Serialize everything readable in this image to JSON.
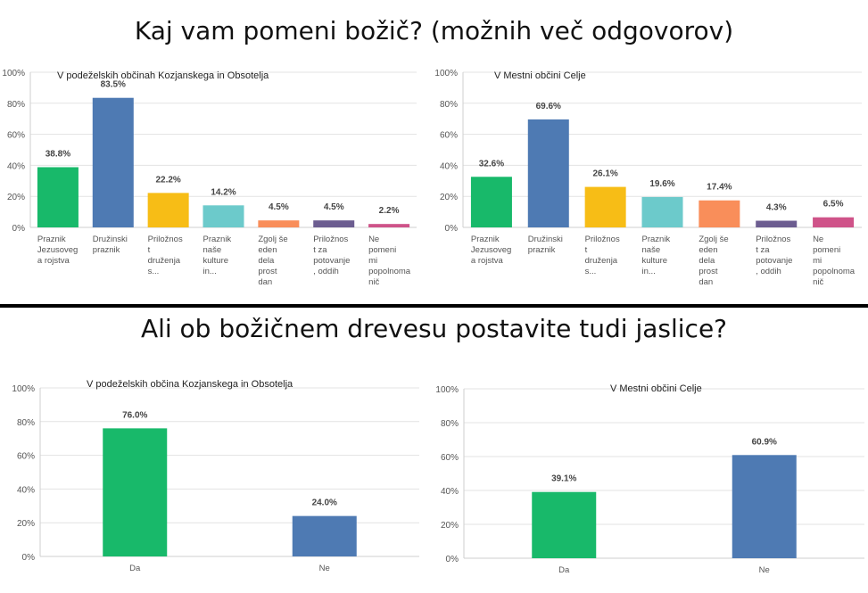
{
  "section_titles": {
    "top": "Kaj vam pomeni božič? (možnih več odgovorov)",
    "bottom": "Ali ob božičnem drevesu postavite tudi jaslice?"
  },
  "colors": {
    "green": "#18b96a",
    "blue": "#4e7ab3",
    "yellow": "#f7bd16",
    "teal": "#6ccacb",
    "orange": "#f98e5a",
    "purple": "#6c5d90",
    "pink": "#cf5389"
  },
  "chart_data": [
    {
      "type": "bar",
      "title": "V podeželskih občinah Kozjanskega in Obsotelja",
      "categories": [
        [
          "Praznik",
          "Jezusoveg",
          "a rojstva"
        ],
        [
          "Družinski",
          "praznik"
        ],
        [
          "Priložnos",
          "t",
          "druženja",
          "s..."
        ],
        [
          "Praznik",
          "naše",
          "kulture",
          "in..."
        ],
        [
          "Zgolj še",
          "eden",
          "dela",
          "prost",
          "dan"
        ],
        [
          "Priložnos",
          "t za",
          "potovanje",
          ", oddih"
        ],
        [
          "Ne",
          "pomeni",
          "mi",
          "popolnoma",
          "nič"
        ]
      ],
      "values": [
        38.8,
        83.5,
        22.2,
        14.2,
        4.5,
        4.5,
        2.2
      ],
      "value_labels": [
        "38.8%",
        "83.5%",
        "22.2%",
        "14.2%",
        "4.5%",
        "4.5%",
        "2.2%"
      ],
      "colors": [
        "green",
        "blue",
        "yellow",
        "teal",
        "orange",
        "purple",
        "pink"
      ],
      "yticks": [
        "0%",
        "20%",
        "40%",
        "60%",
        "80%",
        "100%"
      ],
      "ylim": [
        0,
        100
      ],
      "grid": true
    },
    {
      "type": "bar",
      "title": "V Mestni občini Celje",
      "categories": [
        [
          "Praznik",
          "Jezusoveg",
          "a rojstva"
        ],
        [
          "Družinski",
          "praznik"
        ],
        [
          "Priložnos",
          "t",
          "druženja",
          "s..."
        ],
        [
          "Praznik",
          "naše",
          "kulture",
          "in..."
        ],
        [
          "Zgolj še",
          "eden",
          "dela",
          "prost",
          "dan"
        ],
        [
          "Priložnos",
          "t za",
          "potovanje",
          ", oddih"
        ],
        [
          "Ne",
          "pomeni",
          "mi",
          "popolnoma",
          "nič"
        ]
      ],
      "values": [
        32.6,
        69.6,
        26.1,
        19.6,
        17.4,
        4.3,
        6.5
      ],
      "value_labels": [
        "32.6%",
        "69.6%",
        "26.1%",
        "19.6%",
        "17.4%",
        "4.3%",
        "6.5%"
      ],
      "colors": [
        "green",
        "blue",
        "yellow",
        "teal",
        "orange",
        "purple",
        "pink"
      ],
      "yticks": [
        "0%",
        "20%",
        "40%",
        "60%",
        "80%",
        "100%"
      ],
      "ylim": [
        0,
        100
      ],
      "grid": true
    },
    {
      "type": "bar",
      "title": "V podeželskih občina Kozjanskega in Obsotelja",
      "categories": [
        [
          "Da"
        ],
        [
          "Ne"
        ]
      ],
      "values": [
        76.0,
        24.0
      ],
      "value_labels": [
        "76.0%",
        "24.0%"
      ],
      "colors": [
        "green",
        "blue"
      ],
      "yticks": [
        "0%",
        "20%",
        "40%",
        "60%",
        "80%",
        "100%"
      ],
      "ylim": [
        0,
        100
      ],
      "grid": true
    },
    {
      "type": "bar",
      "title": "V Mestni občini Celje",
      "categories": [
        [
          "Da"
        ],
        [
          "Ne"
        ]
      ],
      "values": [
        39.1,
        60.9
      ],
      "value_labels": [
        "39.1%",
        "60.9%"
      ],
      "colors": [
        "green",
        "blue"
      ],
      "yticks": [
        "0%",
        "20%",
        "40%",
        "60%",
        "80%",
        "100%"
      ],
      "ylim": [
        0,
        100
      ],
      "grid": true
    }
  ]
}
